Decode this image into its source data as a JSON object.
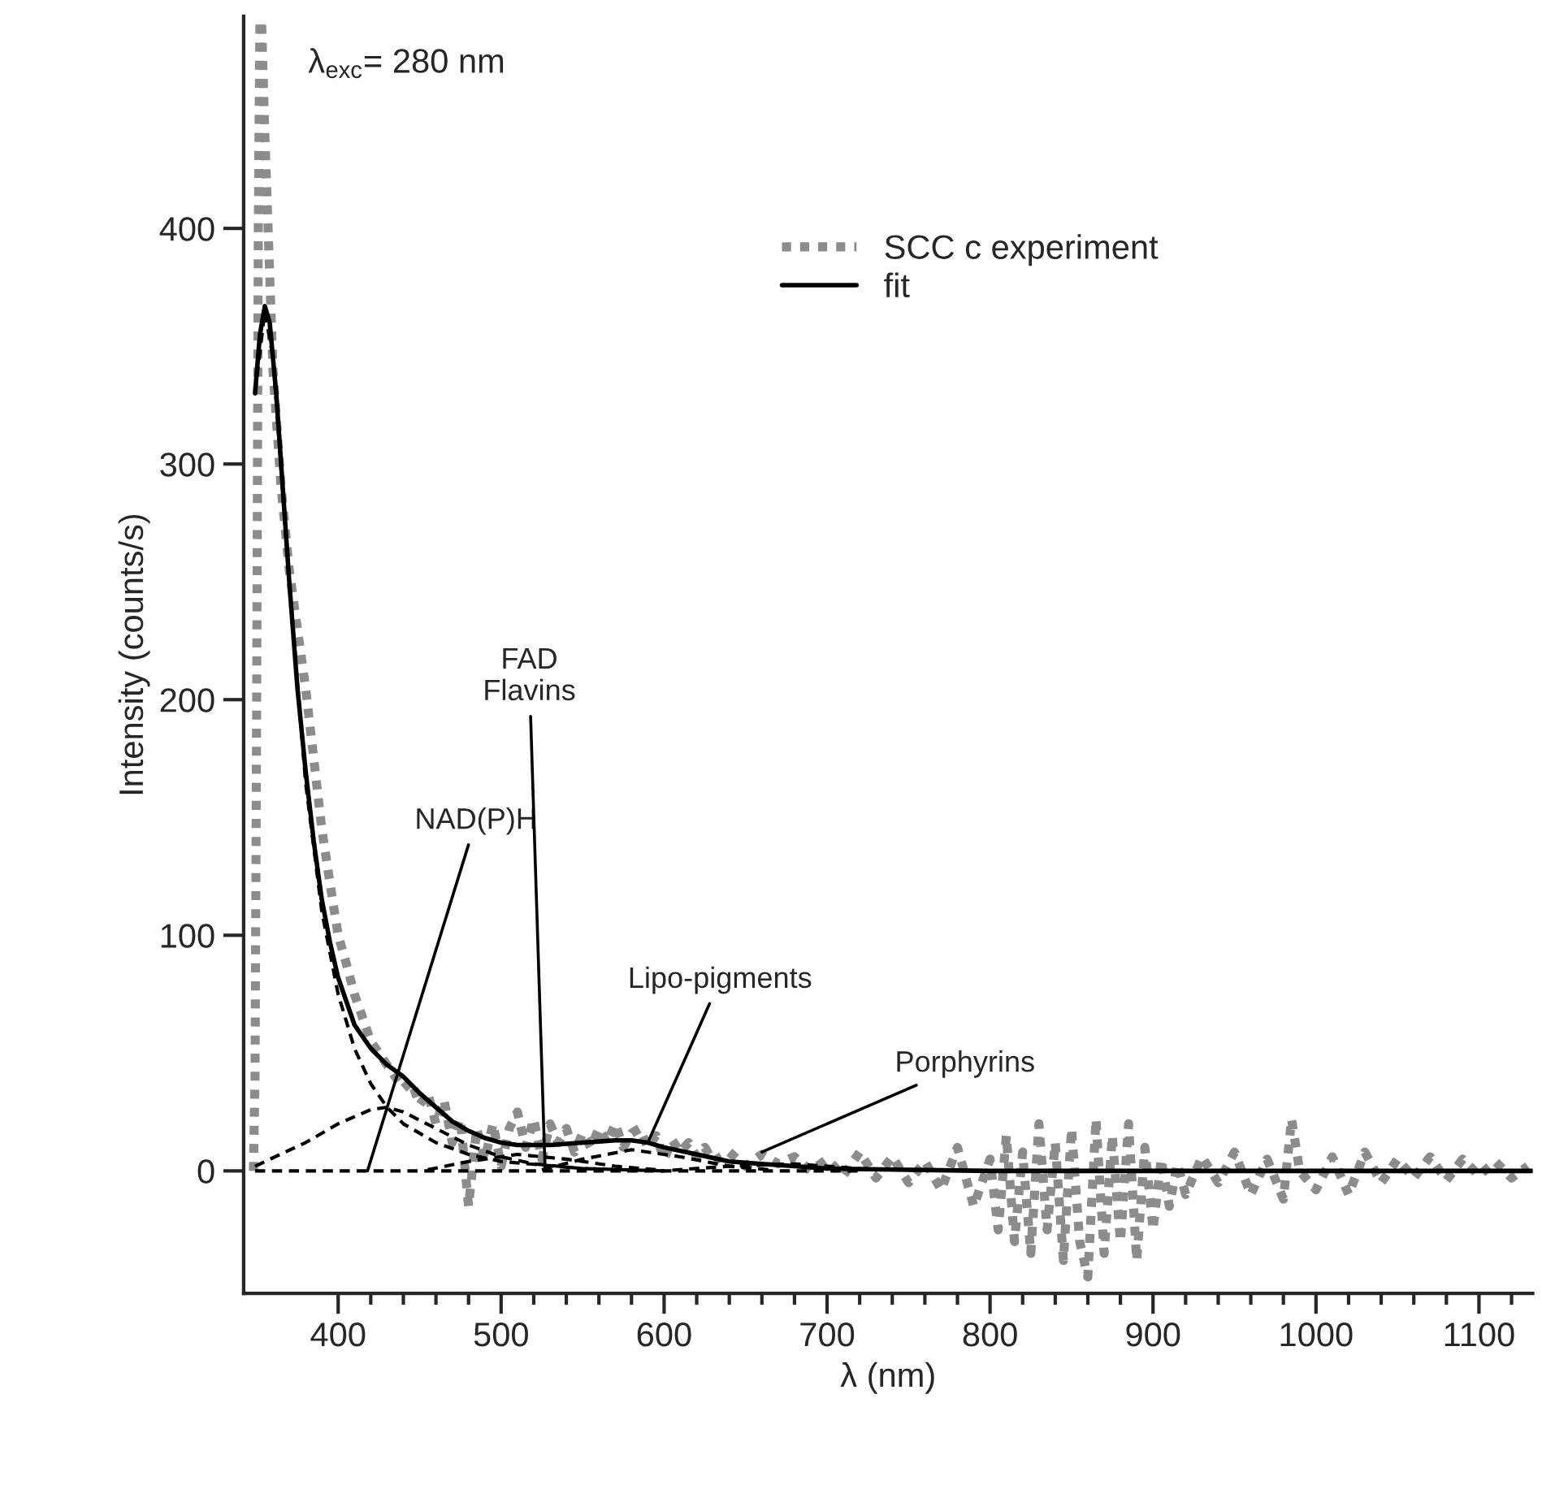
{
  "chart_data": {
    "type": "line",
    "xlabel": "λ (nm)",
    "ylabel": "Intensity (counts/s)",
    "xlim": [
      342,
      1133
    ],
    "ylim": [
      -52,
      490
    ],
    "xticks": [
      400,
      {
        "value": 420,
        "label": null
      },
      {
        "value": 440,
        "label": null
      },
      {
        "value": 460,
        "label": null
      },
      {
        "value": 480,
        "label": null
      },
      500,
      {
        "value": 520,
        "label": null
      },
      {
        "value": 540,
        "label": null
      },
      {
        "value": 560,
        "label": null
      },
      {
        "value": 580,
        "label": null
      },
      600,
      {
        "value": 620,
        "label": null
      },
      {
        "value": 640,
        "label": null
      },
      {
        "value": 660,
        "label": null
      },
      {
        "value": 680,
        "label": null
      },
      700,
      {
        "value": 720,
        "label": null
      },
      {
        "value": 740,
        "label": null
      },
      {
        "value": 760,
        "label": null
      },
      {
        "value": 780,
        "label": null
      },
      800,
      {
        "value": 820,
        "label": null
      },
      {
        "value": 840,
        "label": null
      },
      {
        "value": 860,
        "label": null
      },
      {
        "value": 880,
        "label": null
      },
      900,
      {
        "value": 920,
        "label": null
      },
      {
        "value": 940,
        "label": null
      },
      {
        "value": 960,
        "label": null
      },
      {
        "value": 980,
        "label": null
      },
      1000,
      {
        "value": 1020,
        "label": null
      },
      {
        "value": 1040,
        "label": null
      },
      {
        "value": 1060,
        "label": null
      },
      {
        "value": 1080,
        "label": null
      },
      1100,
      {
        "value": 1120,
        "label": null
      }
    ],
    "yticks": [
      0,
      100,
      200,
      300,
      400
    ],
    "grid": false,
    "legend": "top right",
    "marker": "none",
    "annotations": [
      "λ$_{exc}$= 280 nm",
      {
        "text": "NAD(P)H",
        "x": 418,
        "y": 0
      },
      {
        "text": "FAD\nFlavins",
        "x": 527,
        "y": 0
      },
      {
        "text": "Lipo-pigments",
        "x": 590,
        "y": 12
      },
      {
        "text": "Porphyrins",
        "x": 660,
        "y": 8
      }
    ],
    "series": [
      {
        "name": "SCC c experiment",
        "color": "#8c8c8c",
        "line_style": "dotted",
        "x": [
          348,
          349,
          350,
          351,
          352,
          353,
          355,
          357,
          360,
          365,
          370,
          375,
          380,
          385,
          390,
          395,
          400,
          405,
          410,
          415,
          420,
          425,
          430,
          435,
          440,
          445,
          450,
          455,
          460,
          465,
          470,
          475,
          480,
          485,
          490,
          495,
          500,
          505,
          510,
          515,
          520,
          525,
          530,
          535,
          540,
          545,
          550,
          555,
          560,
          565,
          570,
          575,
          580,
          585,
          590,
          595,
          600,
          605,
          610,
          615,
          620,
          625,
          630,
          640,
          650,
          660,
          670,
          680,
          690,
          700,
          710,
          720,
          730,
          740,
          750,
          760,
          770,
          780,
          790,
          800,
          805,
          810,
          815,
          820,
          825,
          830,
          835,
          840,
          845,
          850,
          855,
          860,
          865,
          870,
          875,
          880,
          885,
          890,
          895,
          900,
          905,
          910,
          915,
          920,
          930,
          940,
          950,
          960,
          970,
          980,
          985,
          990,
          1000,
          1010,
          1020,
          1030,
          1040,
          1050,
          1060,
          1070,
          1080,
          1090,
          1100,
          1110,
          1120,
          1130
        ],
        "values": [
          0,
          40,
          200,
          400,
          488,
          488,
          440,
          400,
          340,
          290,
          255,
          230,
          205,
          175,
          145,
          122,
          100,
          88,
          75,
          65,
          55,
          50,
          45,
          40,
          35,
          38,
          28,
          33,
          20,
          30,
          12,
          22,
          -15,
          18,
          5,
          20,
          2,
          18,
          25,
          10,
          22,
          5,
          20,
          12,
          18,
          8,
          16,
          10,
          18,
          12,
          20,
          10,
          16,
          18,
          10,
          15,
          5,
          13,
          8,
          12,
          6,
          10,
          4,
          8,
          2,
          7,
          3,
          6,
          0,
          5,
          -2,
          8,
          -3,
          6,
          -5,
          4,
          -8,
          10,
          -15,
          5,
          -25,
          15,
          -30,
          8,
          -35,
          20,
          -25,
          12,
          -38,
          18,
          -30,
          -45,
          22,
          -35,
          15,
          -30,
          20,
          -38,
          10,
          -25,
          5,
          -15,
          3,
          -10,
          6,
          -5,
          8,
          -10,
          5,
          -12,
          22,
          0,
          -8,
          6,
          -10,
          8,
          -5,
          5,
          -3,
          6,
          -4,
          5,
          -2,
          4,
          -3,
          2
        ]
      },
      {
        "name": "fit",
        "color": "#000000",
        "line_style": "solid",
        "x": [
          349,
          352,
          355,
          358,
          362,
          366,
          370,
          375,
          380,
          385,
          390,
          395,
          400,
          410,
          420,
          430,
          440,
          450,
          460,
          470,
          480,
          490,
          500,
          510,
          520,
          530,
          540,
          550,
          560,
          570,
          580,
          590,
          600,
          620,
          640,
          660,
          680,
          700,
          750,
          800,
          900,
          1000,
          1133
        ],
        "values": [
          330,
          355,
          367,
          360,
          330,
          290,
          250,
          205,
          170,
          140,
          115,
          97,
          82,
          62,
          52,
          45,
          40,
          33,
          27,
          21,
          17,
          14,
          12,
          11,
          11,
          11,
          11.5,
          12,
          12.5,
          13,
          13,
          12,
          10,
          7,
          4,
          3,
          2,
          1,
          0.5,
          0,
          0,
          0,
          0
        ]
      },
      {
        "color": "#000000",
        "line_style": "dashed",
        "x": [
          349,
          355,
          360,
          370,
          380,
          390,
          400,
          410,
          420,
          430,
          440,
          460,
          480,
          500,
          550,
          600
        ],
        "values": [
          330,
          365,
          345,
          250,
          165,
          110,
          75,
          52,
          37,
          27,
          20,
          12,
          7,
          4,
          1,
          0
        ]
      },
      {
        "color": "#000000",
        "line_style": "dashed",
        "x": [
          349,
          380,
          400,
          420,
          430,
          440,
          460,
          480,
          500,
          520,
          550,
          600
        ],
        "values": [
          2,
          12,
          20,
          26,
          27,
          25,
          18,
          11,
          6,
          3,
          1,
          0
        ]
      },
      {
        "color": "#000000",
        "line_style": "dashed",
        "x": [
          455,
          480,
          510,
          540,
          570,
          595
        ],
        "values": [
          0.5,
          4,
          7,
          5,
          2,
          0.5
        ]
      },
      {
        "color": "#000000",
        "line_style": "dashed",
        "x": [
          525,
          550,
          580,
          610,
          640,
          665
        ],
        "values": [
          0.5,
          5,
          9,
          6,
          2,
          0.5
        ]
      },
      {
        "color": "#000000",
        "line_style": "dashed",
        "x": [
          605,
          640,
          680,
          720,
          755
        ],
        "values": [
          0.3,
          2,
          3,
          1,
          0.3
        ]
      },
      {
        "color": "#000000",
        "line_style": "dashed",
        "x": [
          349,
          720
        ],
        "values": [
          0,
          0
        ]
      }
    ]
  }
}
